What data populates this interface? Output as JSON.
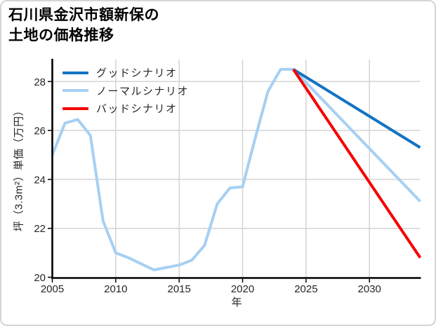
{
  "figure": {
    "title_line1": "石川県金沢市額新保の",
    "title_line2": "土地の価格推移"
  },
  "chart_data": {
    "type": "line",
    "title": "石川県金沢市額新保の土地の価格推移",
    "xlabel": "年",
    "ylabel": "坪（3.3m²）単価（万円）",
    "xlim": [
      2005,
      2034
    ],
    "ylim": [
      20,
      28.9
    ],
    "xticks": [
      2005,
      2010,
      2015,
      2020,
      2025,
      2030
    ],
    "yticks": [
      20,
      22,
      24,
      26,
      28
    ],
    "grid": true,
    "legend_position": "top-left",
    "draw_order": [
      1,
      0,
      2
    ],
    "colors": {
      "grid": "#d4d4d4",
      "axis": "#000000",
      "tick_label": "#262626",
      "good": "#1273c4",
      "normal": "#a6d0f3",
      "bad": "#f60000"
    },
    "series": [
      {
        "id": "good",
        "name": "グッドシナリオ",
        "color": "#1273c4",
        "x": [
          2024,
          2034
        ],
        "values": [
          28.5,
          25.3
        ]
      },
      {
        "id": "normal",
        "name": "ノーマルシナリオ",
        "color": "#a6d0f3",
        "x": [
          2005,
          2006,
          2007,
          2008,
          2009,
          2010,
          2011,
          2012,
          2013,
          2014,
          2015,
          2016,
          2017,
          2018,
          2019,
          2020,
          2021,
          2022,
          2023,
          2024,
          2034
        ],
        "values": [
          25.0,
          26.3,
          26.45,
          25.8,
          22.3,
          21.0,
          20.8,
          20.55,
          20.3,
          20.4,
          20.5,
          20.7,
          21.3,
          23.0,
          23.65,
          23.7,
          25.7,
          27.6,
          28.5,
          28.5,
          23.1
        ]
      },
      {
        "id": "bad",
        "name": "バッドシナリオ",
        "color": "#f60000",
        "x": [
          2024,
          2034
        ],
        "values": [
          28.5,
          20.8
        ]
      }
    ]
  }
}
